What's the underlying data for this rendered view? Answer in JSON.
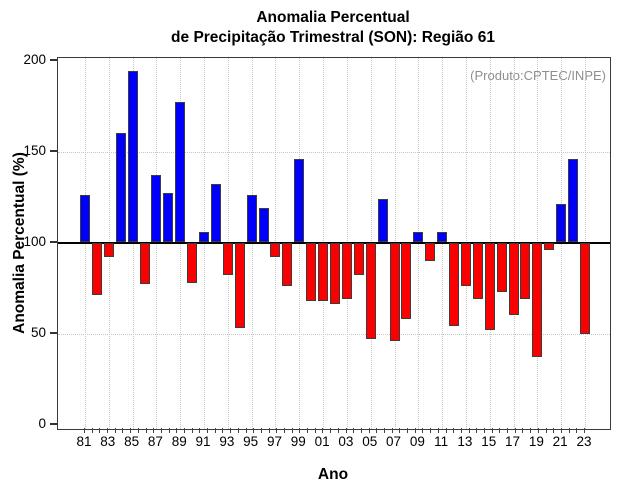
{
  "title": {
    "line1": "Anomalia Percentual",
    "line2": "de Precipitação Trimestral (SON): Região 61"
  },
  "annotation": "(Produto:CPTEC/INPE)",
  "x_axis": {
    "title": "Ano"
  },
  "y_axis": {
    "title": "Anomalia Percentual (%)"
  },
  "chart_data": {
    "type": "bar",
    "title": "Anomalia Percentual de Precipitação Trimestral (SON): Região 61",
    "xlabel": "Ano",
    "ylabel": "Anomalia Percentual (%)",
    "ylim": [
      0,
      200
    ],
    "yticks": [
      0,
      50,
      100,
      150,
      200
    ],
    "grid_values": [
      50,
      150
    ],
    "baseline": 100,
    "legend": "none",
    "categories": [
      "81",
      "82",
      "83",
      "84",
      "85",
      "86",
      "87",
      "88",
      "89",
      "90",
      "91",
      "92",
      "93",
      "94",
      "95",
      "96",
      "97",
      "98",
      "99",
      "00",
      "01",
      "02",
      "03",
      "04",
      "05",
      "06",
      "07",
      "08",
      "09",
      "10",
      "11",
      "12",
      "13",
      "14",
      "15",
      "16",
      "17",
      "18",
      "19",
      "20",
      "21",
      "22",
      "23"
    ],
    "labeled_categories": [
      "81",
      "83",
      "85",
      "87",
      "89",
      "91",
      "93",
      "95",
      "97",
      "99",
      "01",
      "03",
      "05",
      "07",
      "09",
      "11",
      "13",
      "15",
      "17",
      "19",
      "21",
      "23"
    ],
    "values": [
      126,
      71,
      92,
      160,
      194,
      77,
      137,
      127,
      177,
      78,
      106,
      132,
      82,
      53,
      126,
      119,
      92,
      76,
      146,
      68,
      68,
      66,
      69,
      82,
      47,
      124,
      46,
      58,
      106,
      90,
      106,
      54,
      76,
      69,
      52,
      73,
      60,
      69,
      37,
      96,
      121,
      146,
      50
    ],
    "color_above_baseline": "#0000fa",
    "color_below_baseline": "#fa0000",
    "bar_border_color": "#3c3c3c"
  }
}
